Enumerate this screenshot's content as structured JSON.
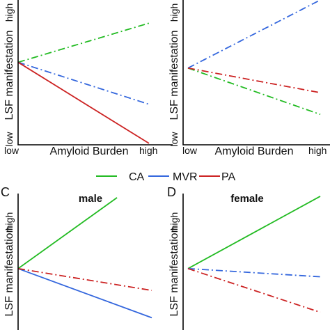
{
  "colors": {
    "CA": "#22bb22",
    "MVR": "#3366dd",
    "PA": "#cc2222"
  },
  "legend": {
    "placement": "center",
    "items": [
      "CA",
      "MVR",
      "PA"
    ]
  },
  "chart_data": [
    {
      "panel_letter": "",
      "title": "",
      "type": "line",
      "xlabel": "Amyloid Burden",
      "ylabel": "LSF manifestation",
      "x_tick_labels": [
        "low",
        "high"
      ],
      "y_tick_labels": [
        "low",
        "high"
      ],
      "xlim": [
        0,
        1
      ],
      "ylim": [
        0,
        1
      ],
      "grid": false,
      "series": [
        {
          "name": "CA",
          "style": "dashdot",
          "x": [
            0,
            1
          ],
          "y": [
            0.57,
            0.84
          ]
        },
        {
          "name": "MVR",
          "style": "dashdot",
          "x": [
            0,
            1
          ],
          "y": [
            0.57,
            0.28
          ]
        },
        {
          "name": "PA",
          "style": "solid",
          "x": [
            0,
            1
          ],
          "y": [
            0.57,
            0.01
          ]
        }
      ]
    },
    {
      "panel_letter": "",
      "title": "",
      "type": "line",
      "xlabel": "Amyloid Burden",
      "ylabel": "LSF manifestation",
      "x_tick_labels": [
        "low",
        "high"
      ],
      "y_tick_labels": [
        "low",
        "high"
      ],
      "xlim": [
        0,
        1
      ],
      "ylim": [
        0,
        1
      ],
      "grid": false,
      "series": [
        {
          "name": "CA",
          "style": "dashdot",
          "x": [
            0,
            1
          ],
          "y": [
            0.53,
            0.21
          ]
        },
        {
          "name": "MVR",
          "style": "dashdot",
          "x": [
            0,
            1
          ],
          "y": [
            0.53,
            1.0
          ]
        },
        {
          "name": "PA",
          "style": "dashdot",
          "x": [
            0,
            1
          ],
          "y": [
            0.53,
            0.36
          ]
        }
      ]
    },
    {
      "panel_letter": "C",
      "title": "male",
      "type": "line",
      "xlabel": "",
      "ylabel": "LSF manifestation",
      "x_tick_labels": [],
      "y_tick_labels": [
        "high"
      ],
      "xlim": [
        0,
        1
      ],
      "ylim": [
        0,
        1
      ],
      "grid": false,
      "series": [
        {
          "name": "CA",
          "style": "solid",
          "x": [
            0,
            0.74
          ],
          "y": [
            0.45,
            0.97
          ]
        },
        {
          "name": "MVR",
          "style": "solid",
          "x": [
            0,
            1
          ],
          "y": [
            0.45,
            0.09
          ]
        },
        {
          "name": "PA",
          "style": "dashdot",
          "x": [
            0,
            1
          ],
          "y": [
            0.45,
            0.29
          ]
        }
      ]
    },
    {
      "panel_letter": "D",
      "title": "female",
      "type": "line",
      "xlabel": "",
      "ylabel": "LSF manifestation",
      "x_tick_labels": [],
      "y_tick_labels": [
        "high"
      ],
      "xlim": [
        0,
        1
      ],
      "ylim": [
        0,
        1
      ],
      "grid": false,
      "series": [
        {
          "name": "CA",
          "style": "solid",
          "x": [
            0,
            1
          ],
          "y": [
            0.45,
            0.98
          ]
        },
        {
          "name": "MVR",
          "style": "dashdot",
          "x": [
            0,
            1
          ],
          "y": [
            0.45,
            0.39
          ]
        },
        {
          "name": "PA",
          "style": "dashdot",
          "x": [
            0,
            1
          ],
          "y": [
            0.45,
            0.13
          ]
        }
      ]
    }
  ]
}
